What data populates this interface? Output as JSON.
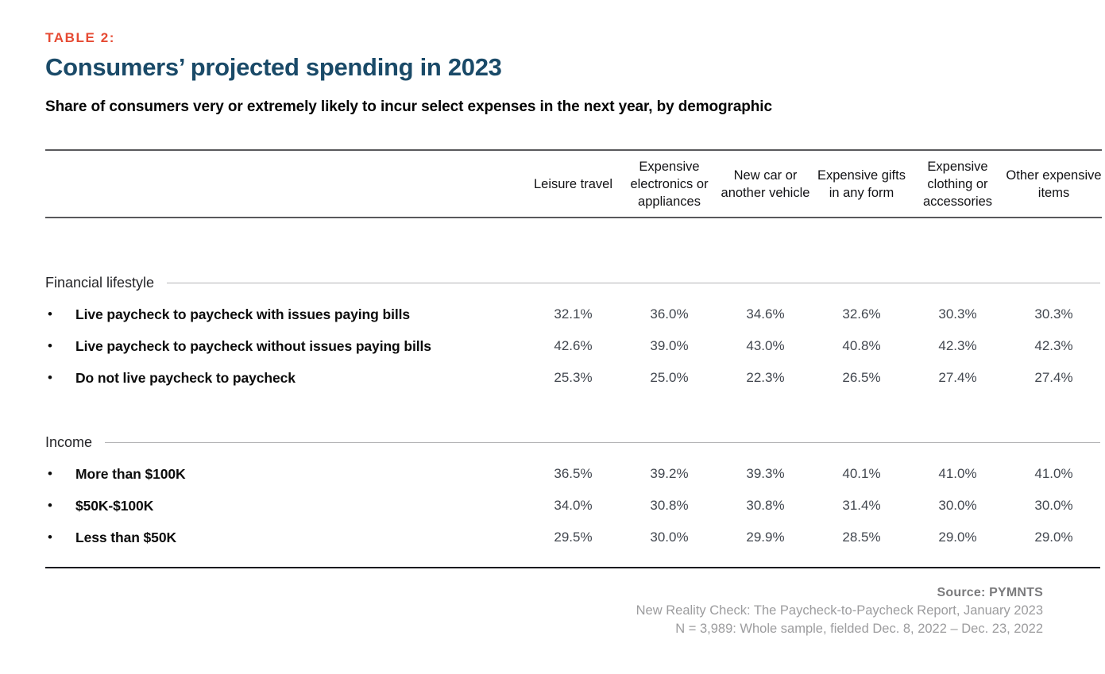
{
  "header": {
    "eyebrow": "TABLE 2:",
    "title": "Consumers’ projected spending in 2023",
    "subtitle": "Share of consumers very or extremely likely to incur select expenses in the next year, by demographic"
  },
  "table": {
    "columns": [
      "Leisure travel",
      "Expensive electronics or appliances",
      "New car or another vehicle",
      "Expensive gifts in any form",
      "Expensive clothing or accessories",
      "Other expensive items"
    ],
    "sections": [
      {
        "label": "Financial lifestyle",
        "rows": [
          {
            "bullet": "•",
            "label": "Live paycheck to paycheck with issues paying bills",
            "values": [
              "32.1%",
              "36.0%",
              "34.6%",
              "32.6%",
              "30.3%",
              "30.3%"
            ]
          },
          {
            "bullet": "•",
            "label": "Live paycheck to paycheck without issues paying bills",
            "values": [
              "42.6%",
              "39.0%",
              "43.0%",
              "40.8%",
              "42.3%",
              "42.3%"
            ]
          },
          {
            "bullet": "•",
            "label": "Do not live paycheck to paycheck",
            "values": [
              "25.3%",
              "25.0%",
              "22.3%",
              "26.5%",
              "27.4%",
              "27.4%"
            ]
          }
        ]
      },
      {
        "label": "Income",
        "rows": [
          {
            "bullet": "•",
            "label": "More than $100K",
            "values": [
              "36.5%",
              "39.2%",
              "39.3%",
              "40.1%",
              "41.0%",
              "41.0%"
            ]
          },
          {
            "bullet": "•",
            "label": "$50K-$100K",
            "values": [
              "34.0%",
              "30.8%",
              "30.8%",
              "31.4%",
              "30.0%",
              "30.0%"
            ]
          },
          {
            "bullet": "•",
            "label": "Less than $50K",
            "values": [
              "29.5%",
              "30.0%",
              "29.9%",
              "28.5%",
              "29.0%",
              "29.0%"
            ]
          }
        ]
      }
    ]
  },
  "footer": {
    "source": "Source: PYMNTS",
    "report": "New Reality Check: The Paycheck-to-Paycheck Report, January 2023",
    "sample": "N = 3,989: Whole sample, fielded Dec. 8, 2022 – Dec. 23, 2022"
  },
  "colors": {
    "eyebrow_red": "#E64A33",
    "title_navy": "#1A4A68",
    "header_rule_gray": "#59595C",
    "section_rule_gray": "#B3B3B5",
    "value_gray": "#42474F",
    "bottom_rule_dark": "#1B1B1F",
    "footer_gray": "#9C9C9E"
  },
  "chart_data": {
    "type": "table",
    "title": "Consumers’ projected spending in 2023",
    "subtitle": "Share of consumers very or extremely likely to incur select expenses in the next year, by demographic",
    "columns": [
      "Leisure travel",
      "Expensive electronics or appliances",
      "New car or another vehicle",
      "Expensive gifts in any form",
      "Expensive clothing or accessories",
      "Other expensive items"
    ],
    "row_groups": [
      {
        "group": "Financial lifestyle",
        "rows": [
          {
            "label": "Live paycheck to paycheck with issues paying bills",
            "values_pct": [
              32.1,
              36.0,
              34.6,
              32.6,
              30.3,
              30.3
            ]
          },
          {
            "label": "Live paycheck to paycheck without issues paying bills",
            "values_pct": [
              42.6,
              39.0,
              43.0,
              40.8,
              42.3,
              42.3
            ]
          },
          {
            "label": "Do not live paycheck to paycheck",
            "values_pct": [
              25.3,
              25.0,
              22.3,
              26.5,
              27.4,
              27.4
            ]
          }
        ]
      },
      {
        "group": "Income",
        "rows": [
          {
            "label": "More than $100K",
            "values_pct": [
              36.5,
              39.2,
              39.3,
              40.1,
              41.0,
              41.0
            ]
          },
          {
            "label": "$50K-$100K",
            "values_pct": [
              34.0,
              30.8,
              30.8,
              31.4,
              30.0,
              30.0
            ]
          },
          {
            "label": "Less than $50K",
            "values_pct": [
              29.5,
              30.0,
              29.9,
              28.5,
              29.0,
              29.0
            ]
          }
        ]
      }
    ],
    "source": "PYMNTS",
    "notes": [
      "New Reality Check: The Paycheck-to-Paycheck Report, January 2023",
      "N = 3,989: Whole sample, fielded Dec. 8, 2022 – Dec. 23, 2022"
    ]
  }
}
